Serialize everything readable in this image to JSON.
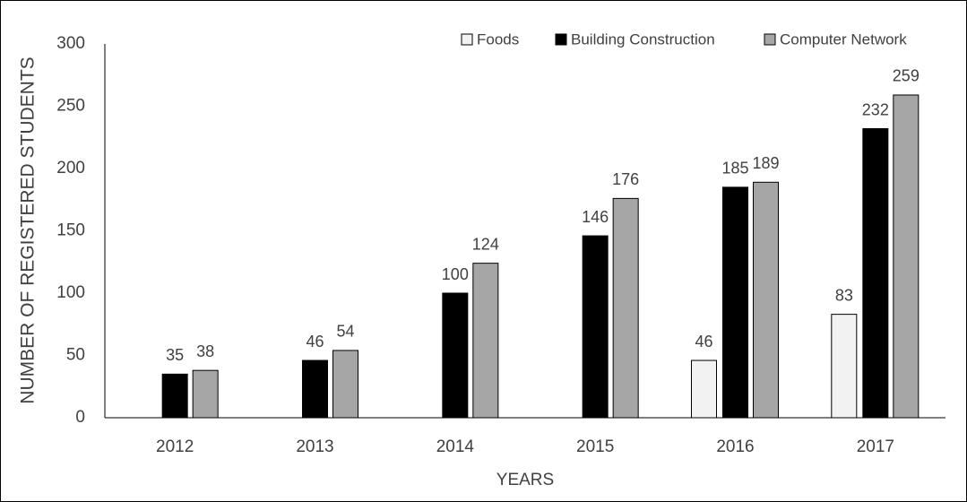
{
  "chart_data": {
    "type": "bar",
    "y_label": "NUMBER OF REGISTERED STUDENTS",
    "x_label": "YEARS",
    "categories": [
      "2012",
      "2013",
      "2014",
      "2015",
      "2016",
      "2017"
    ],
    "series": [
      {
        "name": "Foods",
        "color": "#f2f2f2",
        "values": [
          null,
          null,
          null,
          null,
          46,
          83
        ]
      },
      {
        "name": "Building Construction",
        "color": "#000000",
        "values": [
          35,
          46,
          100,
          146,
          185,
          232
        ]
      },
      {
        "name": "Computer Network",
        "color": "#a6a6a6",
        "values": [
          38,
          54,
          124,
          176,
          189,
          259
        ]
      }
    ],
    "ylim": [
      0,
      300
    ],
    "yticks": [
      0,
      50,
      100,
      150,
      200,
      250,
      300
    ],
    "grid": false,
    "legend": "top-right"
  }
}
